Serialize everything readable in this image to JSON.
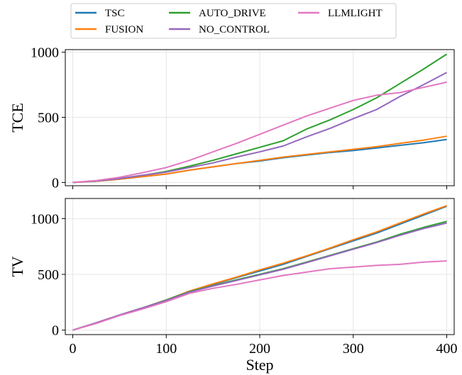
{
  "chart_data": [
    {
      "type": "line",
      "ylabel": "TCE",
      "xlabel": "",
      "xlim": [
        -8,
        408
      ],
      "ylim": [
        -25,
        1020
      ],
      "xticks": [
        0,
        100,
        200,
        300,
        400
      ],
      "yticks": [
        0,
        500,
        1000
      ],
      "grid": true,
      "series": [
        {
          "name": "TSC",
          "color": "#1f77b4",
          "x": [
            0,
            25,
            50,
            75,
            100,
            125,
            150,
            175,
            200,
            225,
            250,
            275,
            300,
            325,
            350,
            375,
            400
          ],
          "y": [
            0,
            10,
            25,
            45,
            65,
            95,
            120,
            145,
            165,
            190,
            210,
            230,
            245,
            265,
            285,
            305,
            330
          ]
        },
        {
          "name": "FUSION",
          "color": "#ff7f0e",
          "x": [
            0,
            25,
            50,
            75,
            100,
            125,
            150,
            175,
            200,
            225,
            250,
            275,
            300,
            325,
            350,
            375,
            400
          ],
          "y": [
            0,
            10,
            25,
            45,
            65,
            95,
            120,
            145,
            170,
            195,
            215,
            235,
            255,
            275,
            300,
            325,
            355
          ]
        },
        {
          "name": "AUTO_DRIVE",
          "color": "#2ca02c",
          "x": [
            0,
            25,
            50,
            75,
            100,
            125,
            150,
            175,
            200,
            225,
            250,
            275,
            300,
            325,
            350,
            375,
            400
          ],
          "y": [
            0,
            12,
            30,
            55,
            85,
            125,
            170,
            220,
            270,
            320,
            410,
            480,
            560,
            650,
            760,
            870,
            985
          ]
        },
        {
          "name": "NO_CONTROL",
          "color": "#9467bd",
          "x": [
            0,
            25,
            50,
            75,
            100,
            125,
            150,
            175,
            200,
            225,
            250,
            275,
            300,
            325,
            350,
            375,
            400
          ],
          "y": [
            0,
            12,
            30,
            55,
            80,
            115,
            150,
            195,
            235,
            280,
            350,
            415,
            490,
            560,
            660,
            750,
            845
          ]
        },
        {
          "name": "LLMLIGHT",
          "color": "#e377c2",
          "x": [
            0,
            25,
            50,
            75,
            100,
            125,
            150,
            175,
            200,
            225,
            250,
            275,
            300,
            325,
            350,
            375,
            400
          ],
          "y": [
            0,
            15,
            40,
            75,
            115,
            170,
            235,
            300,
            370,
            440,
            510,
            570,
            630,
            670,
            690,
            730,
            770
          ]
        }
      ]
    },
    {
      "type": "line",
      "ylabel": "TV",
      "xlabel": "Step",
      "xlim": [
        -8,
        408
      ],
      "ylim": [
        -40,
        1180
      ],
      "xticks": [
        0,
        100,
        200,
        300,
        400
      ],
      "yticks": [
        0,
        500,
        1000
      ],
      "grid": true,
      "series": [
        {
          "name": "TSC",
          "color": "#1f77b4",
          "x": [
            0,
            25,
            50,
            75,
            100,
            125,
            150,
            175,
            200,
            225,
            250,
            275,
            300,
            325,
            350,
            375,
            400
          ],
          "y": [
            0,
            65,
            135,
            200,
            270,
            350,
            410,
            470,
            530,
            590,
            660,
            730,
            800,
            870,
            950,
            1030,
            1110
          ]
        },
        {
          "name": "FUSION",
          "color": "#ff7f0e",
          "x": [
            0,
            25,
            50,
            75,
            100,
            125,
            150,
            175,
            200,
            225,
            250,
            275,
            300,
            325,
            350,
            375,
            400
          ],
          "y": [
            0,
            65,
            135,
            200,
            270,
            350,
            415,
            475,
            540,
            600,
            665,
            735,
            810,
            880,
            960,
            1040,
            1115
          ]
        },
        {
          "name": "AUTO_DRIVE",
          "color": "#2ca02c",
          "x": [
            0,
            25,
            50,
            75,
            100,
            125,
            150,
            175,
            200,
            225,
            250,
            275,
            300,
            325,
            350,
            375,
            400
          ],
          "y": [
            0,
            65,
            135,
            200,
            270,
            345,
            400,
            450,
            500,
            550,
            610,
            670,
            730,
            790,
            860,
            920,
            975
          ]
        },
        {
          "name": "NO_CONTROL",
          "color": "#9467bd",
          "x": [
            0,
            25,
            50,
            75,
            100,
            125,
            150,
            175,
            200,
            225,
            250,
            275,
            300,
            325,
            350,
            375,
            400
          ],
          "y": [
            0,
            65,
            135,
            200,
            265,
            340,
            395,
            445,
            495,
            545,
            605,
            665,
            725,
            785,
            850,
            910,
            960
          ]
        },
        {
          "name": "LLMLIGHT",
          "color": "#e377c2",
          "x": [
            0,
            25,
            50,
            75,
            100,
            125,
            150,
            175,
            200,
            225,
            250,
            275,
            300,
            325,
            350,
            375,
            400
          ],
          "y": [
            0,
            60,
            130,
            190,
            255,
            330,
            375,
            410,
            450,
            490,
            520,
            550,
            565,
            580,
            590,
            610,
            620
          ]
        }
      ]
    }
  ],
  "legend": {
    "placement": "top-center",
    "entries": [
      {
        "label": "TSC",
        "color": "#1f77b4"
      },
      {
        "label": "AUTO_DRIVE",
        "color": "#2ca02c"
      },
      {
        "label": "LLMLIGHT",
        "color": "#e377c2"
      },
      {
        "label": "FUSION",
        "color": "#ff7f0e"
      },
      {
        "label": "NO_CONTROL",
        "color": "#9467bd"
      }
    ]
  }
}
